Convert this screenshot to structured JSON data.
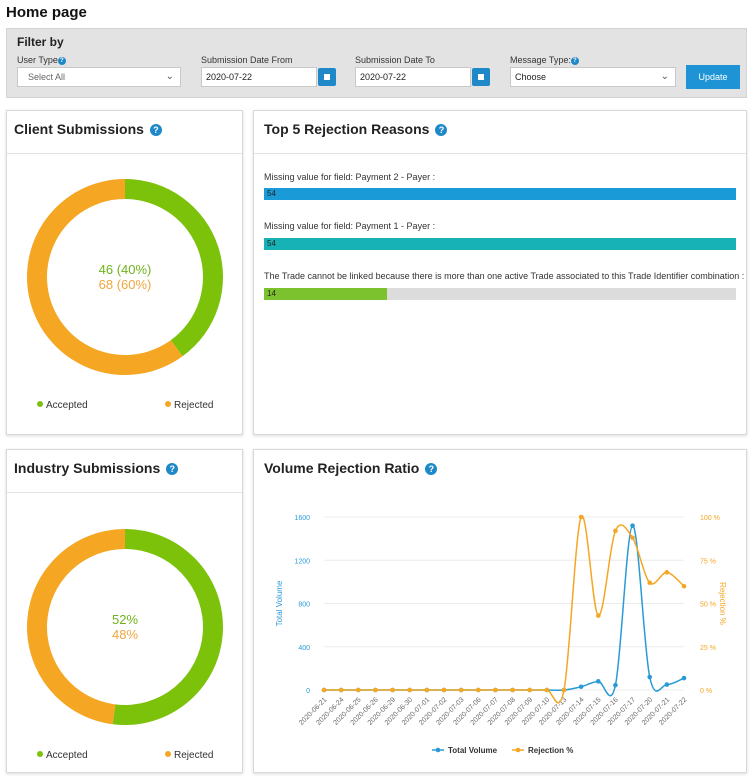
{
  "page": {
    "title": "Home page"
  },
  "filter": {
    "heading": "Filter by",
    "user_type_label": "User Type",
    "user_type_value": "Select All",
    "date_from_label": "Submission Date From",
    "date_from_value": "2020-07-22",
    "date_to_label": "Submission Date To",
    "date_to_value": "2020-07-22",
    "message_type_label": "Message Type:",
    "message_type_value": "Choose",
    "update_label": "Update"
  },
  "client_submissions": {
    "title": "Client Submissions",
    "accepted_text": "46 (40%)",
    "rejected_text": "68 (60%)",
    "accepted_fraction": 0.4,
    "legend_accepted": "Accepted",
    "legend_rejected": "Rejected"
  },
  "industry_submissions": {
    "title": "Industry Submissions",
    "accepted_text": "52%",
    "rejected_text": "48%",
    "accepted_fraction": 0.52,
    "legend_accepted": "Accepted",
    "legend_rejected": "Rejected"
  },
  "rejection_reasons": {
    "title": "Top 5 Rejection Reasons",
    "items": [
      {
        "label": "Missing value for field: Payment 2 - Payer :",
        "value": "54",
        "fraction": 1.0,
        "color": "#1a9ad6"
      },
      {
        "label": "Missing value for field: Payment 1 - Payer :",
        "value": "54",
        "fraction": 1.0,
        "color": "#17b2b5"
      },
      {
        "label": "The Trade cannot be linked because there is more than one active Trade associated to this Trade Identifier combination :",
        "value": "14",
        "fraction": 0.26,
        "color": "#7cc12e"
      }
    ]
  },
  "colors": {
    "accepted": "#7cc10a",
    "rejected": "#f5a623",
    "accepted_text": "#6fb21c",
    "rejected_text": "#f0a640",
    "volume": "#2a9ad6",
    "rejection": "#f5a623"
  },
  "chart_data": {
    "type": "line",
    "title": "Volume Rejection Ratio",
    "x": [
      "2020-06-21",
      "2020-06-24",
      "2020-06-25",
      "2020-06-26",
      "2020-06-29",
      "2020-06-30",
      "2020-07-01",
      "2020-07-02",
      "2020-07-03",
      "2020-07-06",
      "2020-07-07",
      "2020-07-08",
      "2020-07-09",
      "2020-07-10",
      "2020-07-13",
      "2020-07-14",
      "2020-07-15",
      "2020-07-16",
      "2020-07-17",
      "2020-07-20",
      "2020-07-21",
      "2020-07-22"
    ],
    "series": [
      {
        "name": "Total Volume",
        "axis": "left",
        "values": [
          0,
          0,
          0,
          0,
          0,
          0,
          0,
          0,
          0,
          0,
          0,
          0,
          0,
          0,
          0,
          30,
          80,
          45,
          1520,
          120,
          50,
          110
        ]
      },
      {
        "name": "Rejection %",
        "axis": "right",
        "values": [
          0,
          0,
          0,
          0,
          0,
          0,
          0,
          0,
          0,
          0,
          0,
          0,
          0,
          0,
          0,
          100,
          43,
          92,
          88,
          62,
          68,
          60
        ]
      }
    ],
    "ylabel": "Total Volume",
    "y2label": "Rejection %",
    "ylim": [
      0,
      1600
    ],
    "y2lim": [
      0,
      100
    ],
    "yticks": [
      0,
      400,
      800,
      1200,
      1600
    ],
    "y2ticks": [
      "0 %",
      "25 %",
      "50 %",
      "75 %",
      "100 %"
    ],
    "grid": true,
    "legend": "bottom"
  }
}
